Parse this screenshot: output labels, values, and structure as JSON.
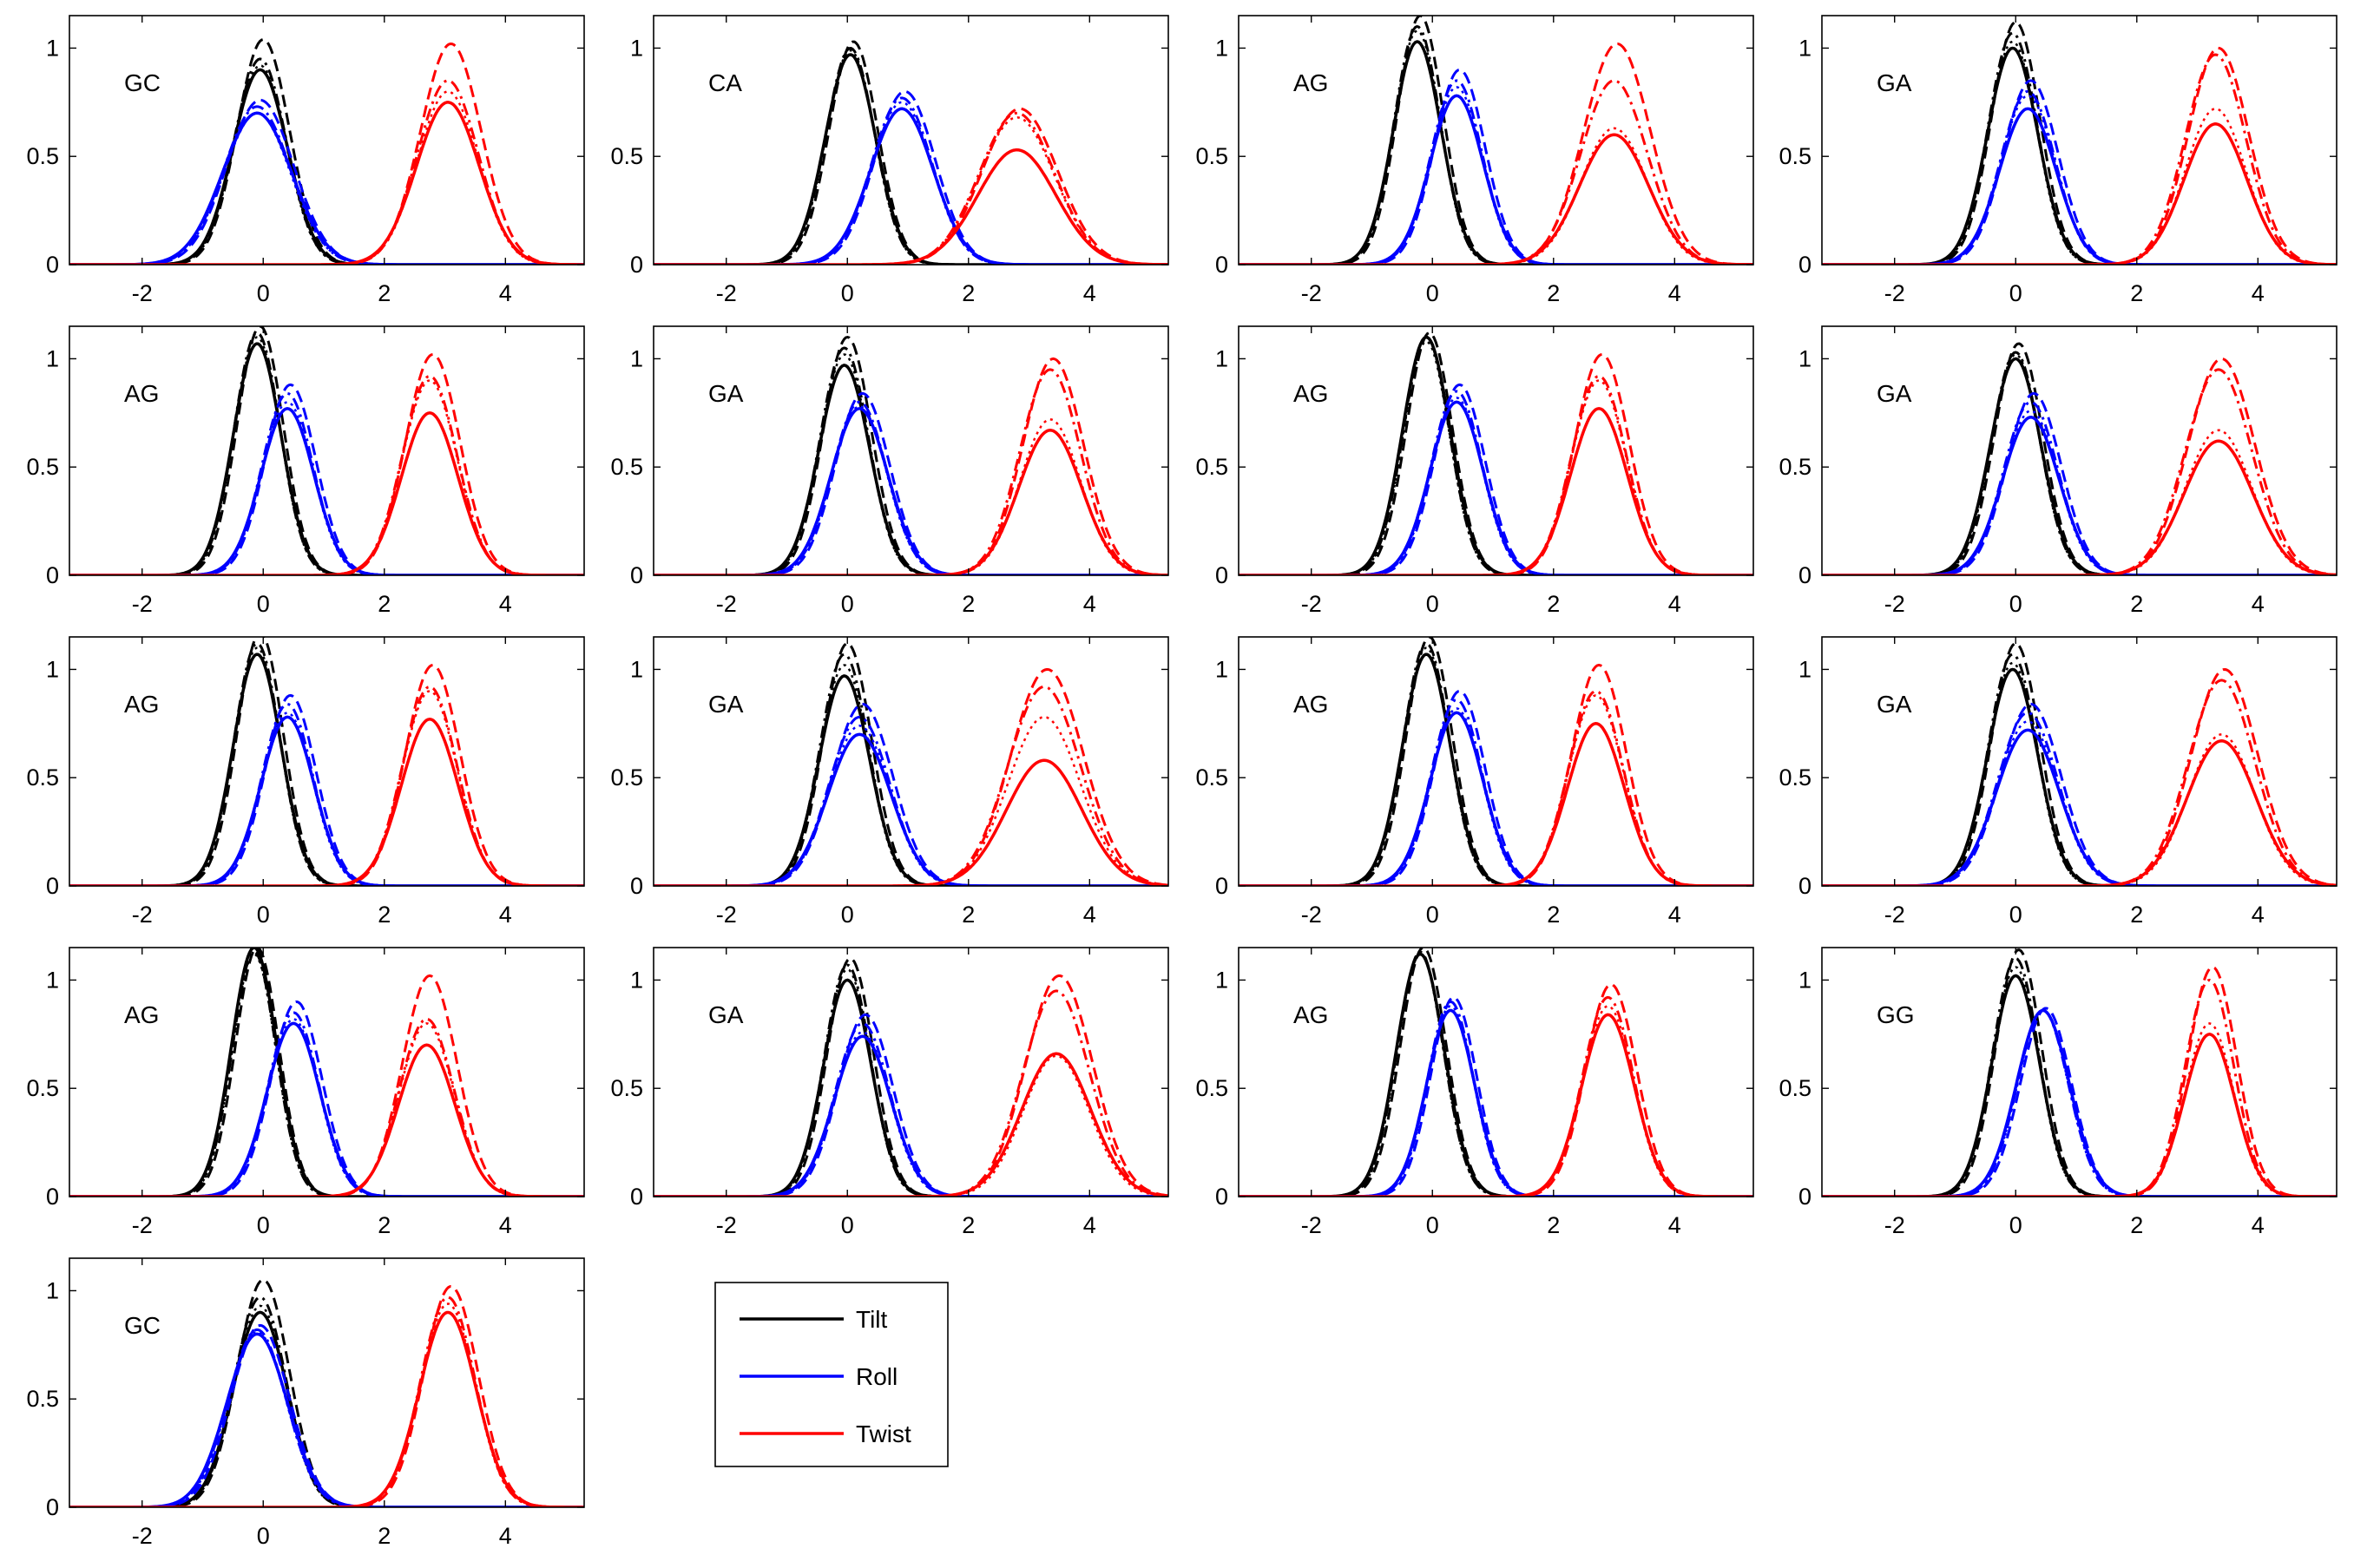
{
  "chart_data": {
    "type": "line",
    "xlim": [
      -3.2,
      5.3
    ],
    "ylim": [
      0,
      1.15
    ],
    "xticks": [
      -2,
      0,
      2,
      4
    ],
    "xtick_labels": [
      "-2",
      "0",
      "2",
      "4"
    ],
    "yticks": [
      0,
      0.5,
      1
    ],
    "ytick_labels": [
      "0",
      "0.5",
      "1"
    ],
    "grid": false,
    "line_styles": [
      "solid",
      "dashed",
      "dashdot",
      "dotted"
    ],
    "legend": {
      "placement": "bottom-center",
      "entries": [
        {
          "label": "Tilt",
          "color": "#000000"
        },
        {
          "label": "Roll",
          "color": "#0000ff"
        },
        {
          "label": "Twist",
          "color": "#ff0000"
        }
      ]
    },
    "panels": [
      {
        "label": "GC",
        "tilt": {
          "mu": -0.05,
          "sd": 0.43,
          "peaks": [
            0.9,
            1.04,
            0.95,
            0.92
          ]
        },
        "roll": {
          "mu": -0.1,
          "sd": 0.55,
          "peaks": [
            0.7,
            0.76,
            0.73,
            0.7
          ]
        },
        "twist": {
          "mu": 3.05,
          "sd": 0.5,
          "peaks": [
            0.75,
            1.02,
            0.85,
            0.8
          ]
        }
      },
      {
        "label": "CA",
        "tilt": {
          "mu": 0.05,
          "sd": 0.4,
          "peaks": [
            0.97,
            1.03,
            1.0,
            0.99
          ]
        },
        "roll": {
          "mu": 0.9,
          "sd": 0.5,
          "peaks": [
            0.72,
            0.8,
            0.77,
            0.75
          ]
        },
        "twist": {
          "mu": 2.8,
          "sd": 0.62,
          "peaks": [
            0.53,
            0.72,
            0.7,
            0.68
          ]
        }
      },
      {
        "label": "AG",
        "tilt": {
          "mu": -0.25,
          "sd": 0.38,
          "peaks": [
            1.03,
            1.15,
            1.1,
            1.08
          ]
        },
        "roll": {
          "mu": 0.4,
          "sd": 0.42,
          "peaks": [
            0.78,
            0.9,
            0.85,
            0.82
          ]
        },
        "twist": {
          "mu": 3.0,
          "sd": 0.55,
          "peaks": [
            0.6,
            1.02,
            0.85,
            0.63
          ]
        }
      },
      {
        "label": "GA",
        "tilt": {
          "mu": -0.05,
          "sd": 0.4,
          "peaks": [
            1.0,
            1.12,
            1.07,
            1.03
          ]
        },
        "roll": {
          "mu": 0.2,
          "sd": 0.45,
          "peaks": [
            0.72,
            0.85,
            0.8,
            0.78
          ]
        },
        "twist": {
          "mu": 3.3,
          "sd": 0.5,
          "peaks": [
            0.65,
            1.0,
            0.97,
            0.72
          ]
        }
      },
      {
        "label": "AG",
        "tilt": {
          "mu": -0.1,
          "sd": 0.38,
          "peaks": [
            1.07,
            1.15,
            1.12,
            1.1
          ]
        },
        "roll": {
          "mu": 0.4,
          "sd": 0.42,
          "peaks": [
            0.77,
            0.88,
            0.84,
            0.8
          ]
        },
        "twist": {
          "mu": 2.75,
          "sd": 0.45,
          "peaks": [
            0.75,
            1.02,
            0.92,
            0.9
          ]
        }
      },
      {
        "label": "GA",
        "tilt": {
          "mu": -0.05,
          "sd": 0.4,
          "peaks": [
            0.97,
            1.1,
            1.05,
            1.02
          ]
        },
        "roll": {
          "mu": 0.2,
          "sd": 0.45,
          "peaks": [
            0.77,
            0.84,
            0.8,
            0.78
          ]
        },
        "twist": {
          "mu": 3.35,
          "sd": 0.5,
          "peaks": [
            0.67,
            1.0,
            0.95,
            0.72
          ]
        }
      },
      {
        "label": "AG",
        "tilt": {
          "mu": -0.1,
          "sd": 0.38,
          "peaks": [
            1.1,
            1.12,
            1.1,
            1.08
          ]
        },
        "roll": {
          "mu": 0.4,
          "sd": 0.42,
          "peaks": [
            0.8,
            0.88,
            0.85,
            0.82
          ]
        },
        "twist": {
          "mu": 2.75,
          "sd": 0.45,
          "peaks": [
            0.77,
            1.02,
            0.92,
            0.9
          ]
        }
      },
      {
        "label": "GA",
        "tilt": {
          "mu": 0.0,
          "sd": 0.4,
          "peaks": [
            1.0,
            1.07,
            1.03,
            1.02
          ]
        },
        "roll": {
          "mu": 0.25,
          "sd": 0.45,
          "peaks": [
            0.73,
            0.84,
            0.8,
            0.76
          ]
        },
        "twist": {
          "mu": 3.35,
          "sd": 0.55,
          "peaks": [
            0.62,
            1.0,
            0.95,
            0.67
          ]
        }
      },
      {
        "label": "AG",
        "tilt": {
          "mu": -0.1,
          "sd": 0.38,
          "peaks": [
            1.07,
            1.17,
            1.12,
            1.1
          ]
        },
        "roll": {
          "mu": 0.4,
          "sd": 0.42,
          "peaks": [
            0.78,
            0.88,
            0.84,
            0.8
          ]
        },
        "twist": {
          "mu": 2.75,
          "sd": 0.45,
          "peaks": [
            0.77,
            1.02,
            0.92,
            0.9
          ]
        }
      },
      {
        "label": "GA",
        "tilt": {
          "mu": -0.05,
          "sd": 0.4,
          "peaks": [
            0.97,
            1.12,
            1.07,
            1.02
          ]
        },
        "roll": {
          "mu": 0.2,
          "sd": 0.5,
          "peaks": [
            0.7,
            0.84,
            0.78,
            0.74
          ]
        },
        "twist": {
          "mu": 3.25,
          "sd": 0.6,
          "peaks": [
            0.58,
            1.0,
            0.92,
            0.78
          ]
        }
      },
      {
        "label": "AG",
        "tilt": {
          "mu": -0.1,
          "sd": 0.38,
          "peaks": [
            1.07,
            1.15,
            1.12,
            1.1
          ]
        },
        "roll": {
          "mu": 0.4,
          "sd": 0.42,
          "peaks": [
            0.8,
            0.9,
            0.86,
            0.82
          ]
        },
        "twist": {
          "mu": 2.7,
          "sd": 0.45,
          "peaks": [
            0.75,
            1.02,
            0.9,
            0.88
          ]
        }
      },
      {
        "label": "GA",
        "tilt": {
          "mu": -0.05,
          "sd": 0.4,
          "peaks": [
            1.0,
            1.12,
            1.07,
            1.03
          ]
        },
        "roll": {
          "mu": 0.2,
          "sd": 0.5,
          "peaks": [
            0.72,
            0.84,
            0.8,
            0.76
          ]
        },
        "twist": {
          "mu": 3.4,
          "sd": 0.55,
          "peaks": [
            0.67,
            1.0,
            0.95,
            0.7
          ]
        }
      },
      {
        "label": "AG",
        "tilt": {
          "mu": -0.15,
          "sd": 0.36,
          "peaks": [
            1.15,
            1.15,
            1.13,
            1.12
          ]
        },
        "roll": {
          "mu": 0.5,
          "sd": 0.42,
          "peaks": [
            0.8,
            0.9,
            0.85,
            0.82
          ]
        },
        "twist": {
          "mu": 2.7,
          "sd": 0.45,
          "peaks": [
            0.7,
            1.02,
            0.82,
            0.8
          ]
        }
      },
      {
        "label": "GA",
        "tilt": {
          "mu": 0.0,
          "sd": 0.38,
          "peaks": [
            1.0,
            1.1,
            1.07,
            1.05
          ]
        },
        "roll": {
          "mu": 0.25,
          "sd": 0.45,
          "peaks": [
            0.74,
            0.84,
            0.8,
            0.76
          ]
        },
        "twist": {
          "mu": 3.45,
          "sd": 0.55,
          "peaks": [
            0.66,
            1.02,
            0.95,
            0.65
          ]
        }
      },
      {
        "label": "AG",
        "tilt": {
          "mu": -0.2,
          "sd": 0.38,
          "peaks": [
            1.12,
            1.15,
            1.13,
            1.12
          ]
        },
        "roll": {
          "mu": 0.3,
          "sd": 0.38,
          "peaks": [
            0.86,
            0.92,
            0.9,
            0.88
          ]
        },
        "twist": {
          "mu": 2.9,
          "sd": 0.42,
          "peaks": [
            0.84,
            0.98,
            0.92,
            0.88
          ]
        }
      },
      {
        "label": "GG",
        "tilt": {
          "mu": 0.0,
          "sd": 0.38,
          "peaks": [
            1.02,
            1.14,
            1.1,
            1.06
          ]
        },
        "roll": {
          "mu": 0.45,
          "sd": 0.42,
          "peaks": [
            0.86,
            0.87,
            0.86,
            0.86
          ]
        },
        "twist": {
          "mu": 3.2,
          "sd": 0.4,
          "peaks": [
            0.75,
            1.06,
            1.0,
            0.8
          ]
        }
      },
      {
        "label": "GC",
        "tilt": {
          "mu": -0.05,
          "sd": 0.43,
          "peaks": [
            0.9,
            1.05,
            0.97,
            0.93
          ]
        },
        "roll": {
          "mu": -0.1,
          "sd": 0.48,
          "peaks": [
            0.8,
            0.84,
            0.82,
            0.81
          ]
        },
        "twist": {
          "mu": 3.05,
          "sd": 0.45,
          "peaks": [
            0.9,
            1.02,
            0.97,
            0.94
          ]
        }
      }
    ]
  }
}
